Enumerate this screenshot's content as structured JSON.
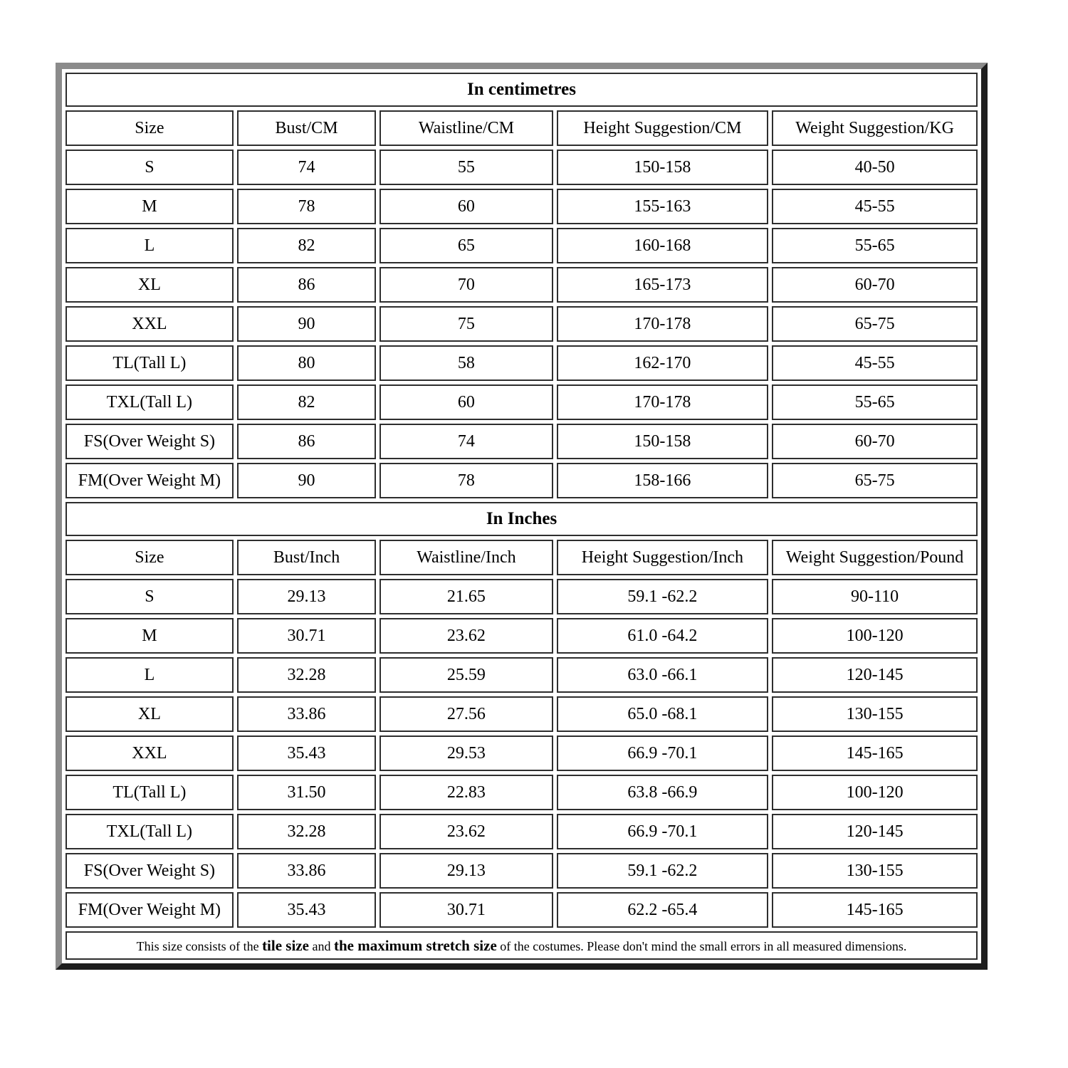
{
  "colors": {
    "background": "#ffffff",
    "frame_light": "#8b8b8b",
    "frame_dark": "#1e1e1e",
    "cell_border": "#2e2e2e",
    "text": "#000000"
  },
  "size_chart": {
    "sections": [
      {
        "caption": "In centimetres",
        "headers": [
          "Size",
          "Bust/CM",
          "Waistline/CM",
          "Height Suggestion/CM",
          "Weight Suggestion/KG"
        ],
        "rows": [
          [
            "S",
            "74",
            "55",
            "150-158",
            "40-50"
          ],
          [
            "M",
            "78",
            "60",
            "155-163",
            "45-55"
          ],
          [
            "L",
            "82",
            "65",
            "160-168",
            "55-65"
          ],
          [
            "XL",
            "86",
            "70",
            "165-173",
            "60-70"
          ],
          [
            "XXL",
            "90",
            "75",
            "170-178",
            "65-75"
          ],
          [
            "TL(Tall L)",
            "80",
            "58",
            "162-170",
            "45-55"
          ],
          [
            "TXL(Tall L)",
            "82",
            "60",
            "170-178",
            "55-65"
          ],
          [
            "FS(Over Weight S)",
            "86",
            "74",
            "150-158",
            "60-70"
          ],
          [
            "FM(Over Weight M)",
            "90",
            "78",
            "158-166",
            "65-75"
          ]
        ]
      },
      {
        "caption": "In Inches",
        "headers": [
          "Size",
          "Bust/Inch",
          "Waistline/Inch",
          "Height Suggestion/Inch",
          "Weight Suggestion/Pound"
        ],
        "rows": [
          [
            "S",
            "29.13",
            "21.65",
            "59.1 -62.2",
            "90-110"
          ],
          [
            "M",
            "30.71",
            "23.62",
            "61.0 -64.2",
            "100-120"
          ],
          [
            "L",
            "32.28",
            "25.59",
            "63.0 -66.1",
            "120-145"
          ],
          [
            "XL",
            "33.86",
            "27.56",
            "65.0 -68.1",
            "130-155"
          ],
          [
            "XXL",
            "35.43",
            "29.53",
            "66.9 -70.1",
            "145-165"
          ],
          [
            "TL(Tall L)",
            "31.50",
            "22.83",
            "63.8 -66.9",
            "100-120"
          ],
          [
            "TXL(Tall L)",
            "32.28",
            "23.62",
            "66.9 -70.1",
            "120-145"
          ],
          [
            "FS(Over Weight S)",
            "33.86",
            "29.13",
            "59.1 -62.2",
            "130-155"
          ],
          [
            "FM(Over Weight M)",
            "35.43",
            "30.71",
            "62.2 -65.4",
            "145-165"
          ]
        ]
      }
    ],
    "column_widths_pct": [
      18.7,
      15.5,
      19.3,
      23.6,
      22.9
    ],
    "footer_parts": [
      {
        "text": "This size consists of the ",
        "bold": false
      },
      {
        "text": "tile size",
        "bold": true
      },
      {
        "text": " and ",
        "bold": false
      },
      {
        "text": "the maximum stretch size",
        "bold": true
      },
      {
        "text": " of the costumes. Please don't mind the small errors in all measured dimensions.",
        "bold": false
      }
    ]
  }
}
